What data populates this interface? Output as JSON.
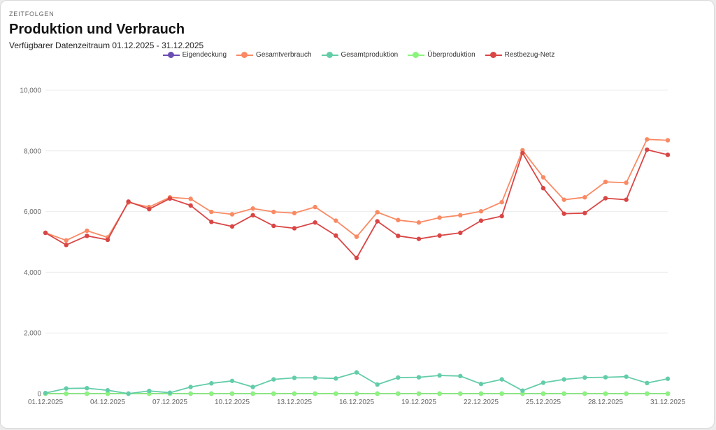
{
  "header": {
    "eyebrow": "ZEITFOLGEN",
    "title": "Produktion und Verbrauch",
    "subtitle": "Verfügbarer Datenzeitraum 01.12.2025 - 31.12.2025"
  },
  "colors": {
    "Eigendeckung": "#6b4db3",
    "Gesamtverbrauch": "#f98a64",
    "Gesamtproduktion": "#63cda8",
    "Überproduktion": "#8bf47c",
    "Restbezug-Netz": "#d94645"
  },
  "chart_data": {
    "type": "line",
    "title": "Produktion und Verbrauch",
    "ylim": [
      0,
      10000
    ],
    "yticks": [
      "0",
      "2,000",
      "4,000",
      "6,000",
      "8,000",
      "10,000"
    ],
    "ytick_values": [
      0,
      2000,
      4000,
      6000,
      8000,
      10000
    ],
    "x": [
      "01.12.2025",
      "02.12.2025",
      "03.12.2025",
      "04.12.2025",
      "05.12.2025",
      "06.12.2025",
      "07.12.2025",
      "08.12.2025",
      "09.12.2025",
      "10.12.2025",
      "11.12.2025",
      "12.12.2025",
      "13.12.2025",
      "14.12.2025",
      "15.12.2025",
      "16.12.2025",
      "17.12.2025",
      "18.12.2025",
      "19.12.2025",
      "20.12.2025",
      "21.12.2025",
      "22.12.2025",
      "23.12.2025",
      "24.12.2025",
      "25.12.2025",
      "26.12.2025",
      "27.12.2025",
      "28.12.2025",
      "29.12.2025",
      "30.12.2025",
      "31.12.2025"
    ],
    "xtick_labels": [
      "01.12.2025",
      "04.12.2025",
      "07.12.2025",
      "10.12.2025",
      "13.12.2025",
      "16.12.2025",
      "19.12.2025",
      "22.12.2025",
      "25.12.2025",
      "28.12.2025",
      "31.12.2025"
    ],
    "legend": [
      "Eigendeckung",
      "Gesamtverbrauch",
      "Gesamtproduktion",
      "Überproduktion",
      "Restbezug-Netz"
    ],
    "series": [
      {
        "name": "Eigendeckung",
        "values": [
          0,
          0,
          0,
          0,
          0,
          0,
          0,
          0,
          0,
          0,
          0,
          0,
          0,
          0,
          0,
          0,
          0,
          0,
          0,
          0,
          0,
          0,
          0,
          0,
          0,
          0,
          0,
          0,
          0,
          0,
          0
        ]
      },
      {
        "name": "Überproduktion",
        "values": [
          0,
          0,
          0,
          0,
          0,
          0,
          0,
          0,
          0,
          0,
          0,
          0,
          0,
          0,
          0,
          0,
          0,
          0,
          0,
          0,
          0,
          0,
          0,
          0,
          0,
          0,
          0,
          0,
          0,
          0,
          0
        ]
      },
      {
        "name": "Gesamtproduktion",
        "values": [
          20,
          170,
          180,
          110,
          0,
          90,
          30,
          220,
          340,
          420,
          220,
          470,
          520,
          520,
          500,
          700,
          300,
          530,
          540,
          600,
          580,
          320,
          470,
          100,
          360,
          470,
          530,
          540,
          560,
          350,
          490
        ]
      },
      {
        "name": "Gesamtverbrauch",
        "values": [
          5300,
          5050,
          5370,
          5150,
          6300,
          6150,
          6470,
          6420,
          5990,
          5910,
          6100,
          5990,
          5950,
          6150,
          5700,
          5170,
          5980,
          5720,
          5640,
          5800,
          5880,
          6010,
          6310,
          8020,
          7130,
          6390,
          6470,
          6980,
          6950,
          8380,
          8350
        ]
      },
      {
        "name": "Restbezug-Netz",
        "values": [
          5300,
          4900,
          5200,
          5070,
          6330,
          6080,
          6430,
          6200,
          5660,
          5510,
          5880,
          5530,
          5450,
          5640,
          5210,
          4470,
          5680,
          5200,
          5100,
          5210,
          5300,
          5700,
          5850,
          7930,
          6770,
          5930,
          5950,
          6440,
          6390,
          8040,
          7870
        ]
      }
    ]
  }
}
